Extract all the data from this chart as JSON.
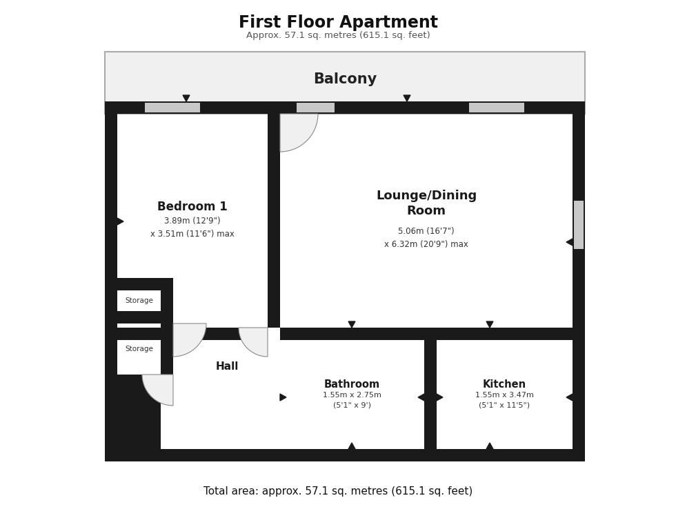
{
  "title": "First Floor Apartment",
  "subtitle": "Approx. 57.1 sq. metres (615.1 sq. feet)",
  "footer": "Total area: approx. 57.1 sq. metres (615.1 sq. feet)",
  "bg_color": "#ffffff",
  "wall_color": "#1a1a1a",
  "room_fill": "#ffffff",
  "balcony_fill": "#f0f0f0",
  "win_color": "#c8c8c8",
  "door_fill": "#f0f0f0",
  "door_edge": "#888888",
  "rooms": {
    "bedroom1_label": "Bedroom 1",
    "bedroom1_sub": "3.89m (12'9\")\nx 3.51m (11'6\") max",
    "lounge_label": "Lounge/Dining\nRoom",
    "lounge_sub": "5.06m (16'7\")\nx 6.32m (20'9\") max",
    "bathroom_label": "Bathroom",
    "bathroom_sub": "1.55m x 2.75m\n(5'1\" x 9')",
    "kitchen_label": "Kitchen",
    "kitchen_sub": "1.55m x 3.47m\n(5'1\" x 11'5\")",
    "hall_label": "Hall",
    "storage_label": "Storage",
    "balcony_label": "Balcony"
  }
}
